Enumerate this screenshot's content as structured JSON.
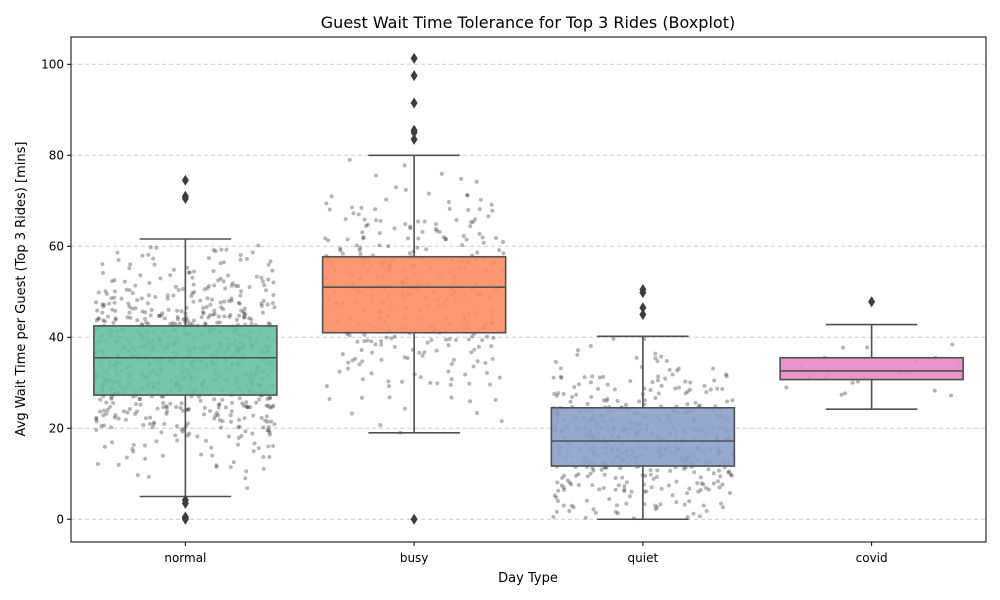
{
  "chart_data": {
    "type": "box",
    "title": "Guest Wait Time Tolerance for Top 3 Rides (Boxplot)",
    "xlabel": "Day Type",
    "ylabel": "Avg Wait Time per Guest (Top 3 Rides) [mins]",
    "ylim": [
      -5,
      106
    ],
    "yticks": [
      0,
      20,
      40,
      60,
      80,
      100
    ],
    "grid": "horizontal dashed",
    "categories": [
      "normal",
      "busy",
      "quiet",
      "covid"
    ],
    "colors": [
      "#66c2a5",
      "#fc8d62",
      "#8da0cb",
      "#e78ac3"
    ],
    "boxes": [
      {
        "category": "normal",
        "whisker_low": 5,
        "q1": 27.3,
        "median": 35.5,
        "q3": 42.5,
        "whisker_high": 61.6,
        "outliers": [
          0,
          0.3,
          0.5,
          3.5,
          4.2,
          70.5,
          71,
          74.5
        ]
      },
      {
        "category": "busy",
        "whisker_low": 19,
        "q1": 41,
        "median": 51,
        "q3": 57.7,
        "whisker_high": 80,
        "outliers": [
          0,
          83.5,
          85,
          85.5,
          91.5,
          97.5,
          101.3
        ]
      },
      {
        "category": "quiet",
        "whisker_low": 0,
        "q1": 11.7,
        "median": 17.2,
        "q3": 24.5,
        "whisker_high": 40.2,
        "outliers": [
          45,
          46.5,
          49.8,
          50.5
        ]
      },
      {
        "category": "covid",
        "whisker_low": 24.2,
        "q1": 30.7,
        "median": 32.6,
        "q3": 35.5,
        "whisker_high": 42.8,
        "outliers": [
          47.8
        ]
      }
    ],
    "jitter_points": {
      "normal": 750,
      "busy": 330,
      "quiet": 450,
      "covid": 20
    }
  }
}
